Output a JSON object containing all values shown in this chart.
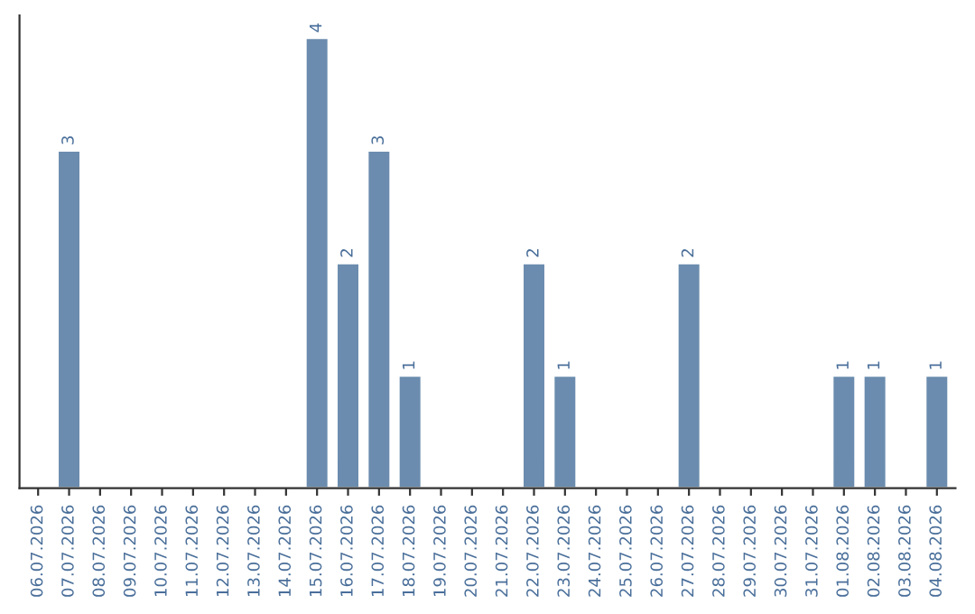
{
  "chart_data": {
    "type": "bar",
    "categories": [
      "06.07.2026",
      "07.07.2026",
      "08.07.2026",
      "09.07.2026",
      "10.07.2026",
      "11.07.2026",
      "12.07.2026",
      "13.07.2026",
      "14.07.2026",
      "15.07.2026",
      "16.07.2026",
      "17.07.2026",
      "18.07.2026",
      "19.07.2026",
      "20.07.2026",
      "21.07.2026",
      "22.07.2026",
      "23.07.2026",
      "24.07.2026",
      "25.07.2026",
      "26.07.2026",
      "27.07.2026",
      "28.07.2026",
      "29.07.2026",
      "30.07.2026",
      "31.07.2026",
      "01.08.2026",
      "02.08.2026",
      "03.08.2026",
      "04.08.2026"
    ],
    "values": [
      null,
      3,
      null,
      null,
      null,
      null,
      null,
      null,
      null,
      4,
      2,
      3,
      1,
      null,
      null,
      null,
      2,
      1,
      null,
      null,
      null,
      2,
      null,
      null,
      null,
      null,
      1,
      1,
      null,
      1
    ],
    "value_labels": [
      null,
      "3",
      null,
      null,
      null,
      null,
      null,
      null,
      null,
      "4",
      "2",
      "3",
      "1",
      null,
      null,
      null,
      "2",
      "1",
      null,
      null,
      null,
      "2",
      null,
      null,
      null,
      null,
      "1",
      "1",
      null,
      "1"
    ],
    "color": "#6b8cae",
    "tick_labels": "x",
    "grid": false
  }
}
